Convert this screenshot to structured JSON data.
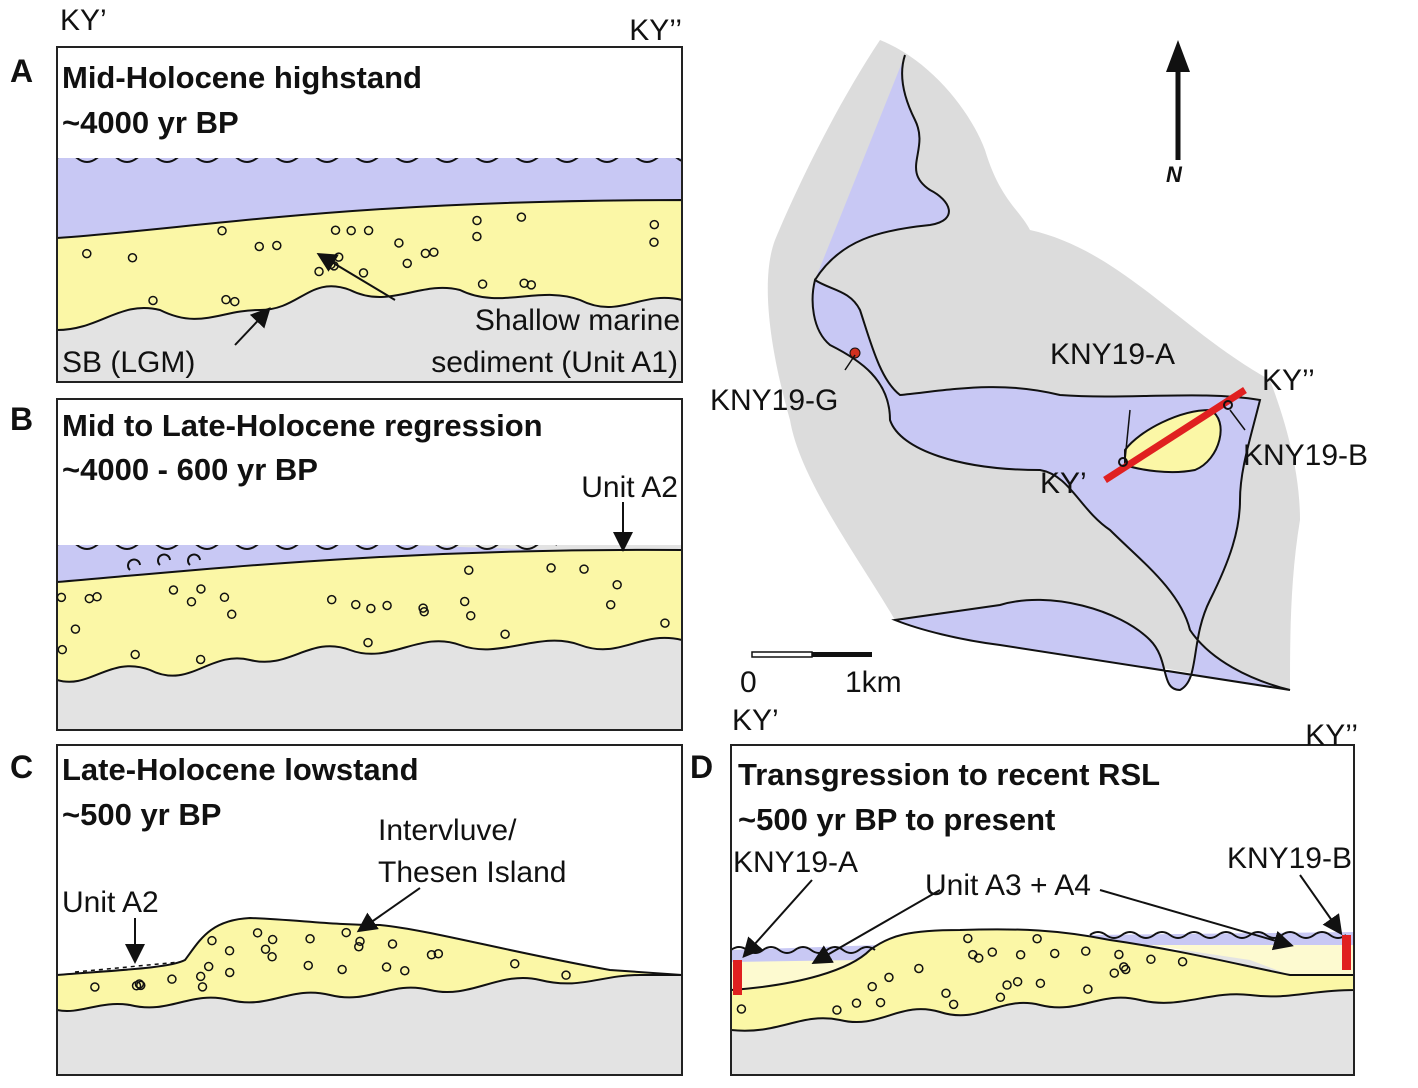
{
  "header": {
    "left": "KY’",
    "right": "KY’’"
  },
  "panels": [
    {
      "letter": "A",
      "title": [
        "Mid-Holocene highstand",
        "~4000 yr BP"
      ],
      "labels": [
        "Shallow marine",
        "sediment (Unit A1)",
        "SB (LGM)"
      ]
    },
    {
      "letter": "B",
      "title": [
        "Mid to Late-Holocene regression",
        "~4000 - 600 yr BP"
      ],
      "labels": [
        "Unit A2"
      ]
    },
    {
      "letter": "C",
      "title": [
        "Late-Holocene lowstand",
        "~500 yr BP"
      ],
      "labels": [
        "Intervluve/",
        "Thesen Island",
        "Unit A2"
      ]
    },
    {
      "letter": "D",
      "title": [
        "Transgression to recent RSL",
        "~500 yr BP to present"
      ],
      "labels": [
        "KY’",
        "KY’’",
        "KNY19-A",
        "Unit A3 + A4",
        "KNY19-B"
      ]
    }
  ],
  "map": {
    "north": "N",
    "sites": [
      "KNY19-A",
      "KNY19-G",
      "KNY19-B"
    ],
    "section_ends": [
      "KY’",
      "KY’’"
    ],
    "scale": [
      "0",
      "1km"
    ]
  }
}
